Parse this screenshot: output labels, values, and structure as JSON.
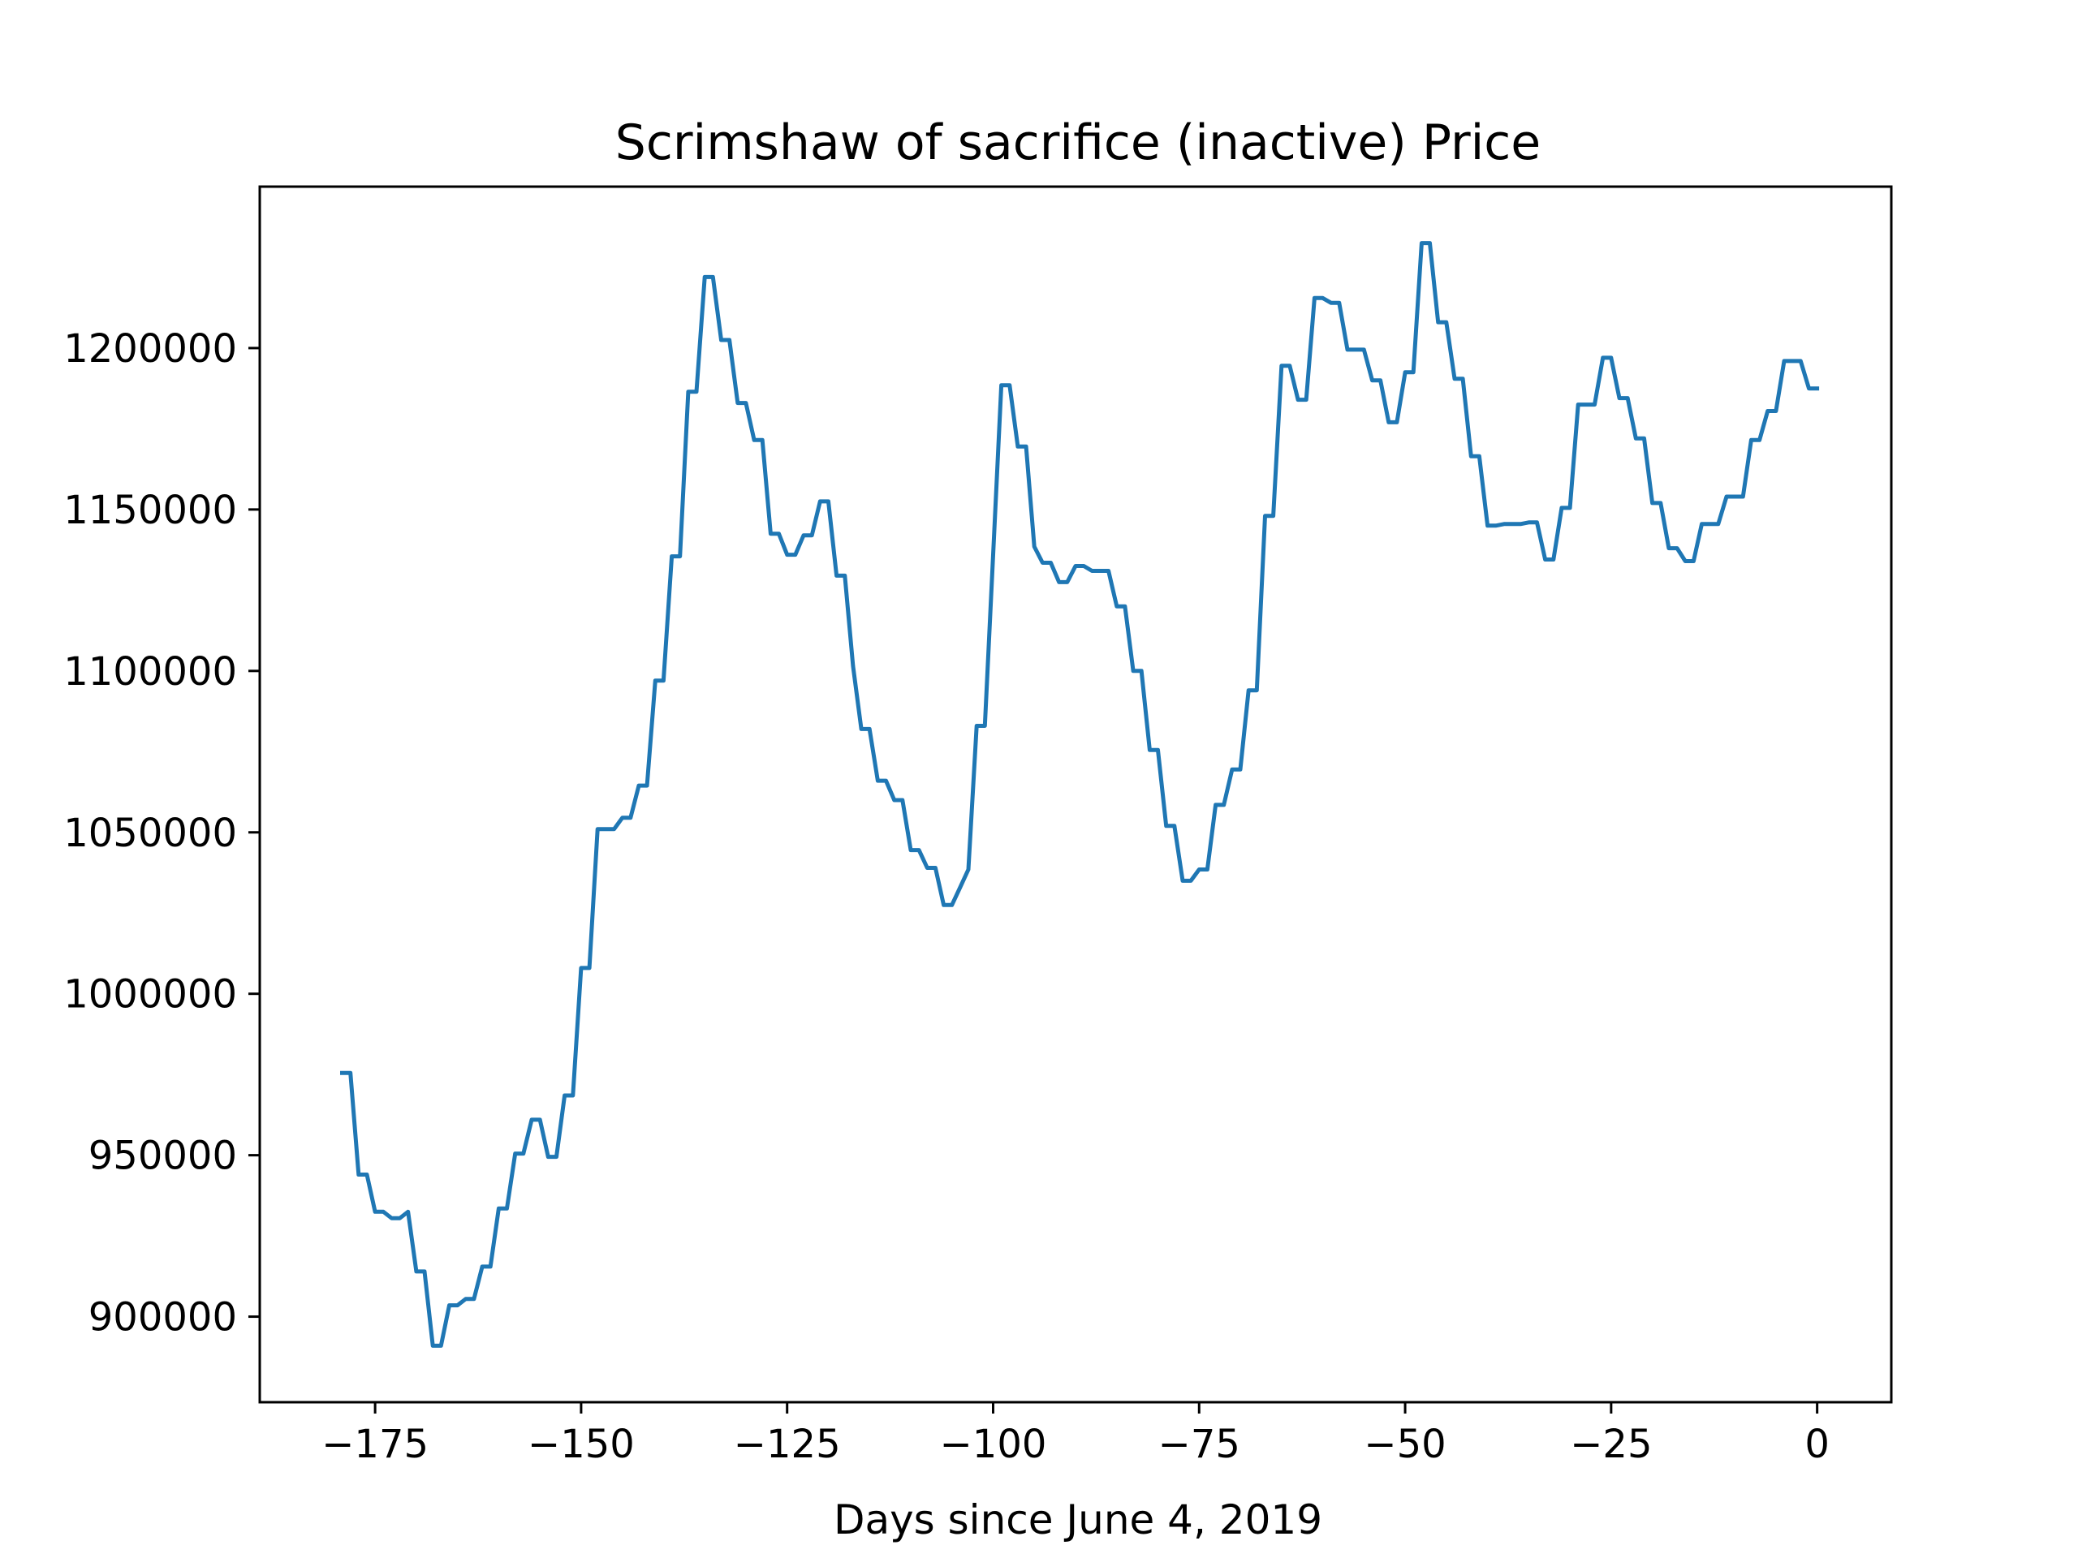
{
  "chart_data": {
    "type": "line",
    "title": "Scrimshaw of sacrifice (inactive) Price",
    "xlabel": "Days since June 4, 2019",
    "ylabel": "",
    "xlim": [
      -189,
      9
    ],
    "ylim": [
      873500,
      1250000
    ],
    "grid": false,
    "x_ticks": [
      {
        "value": -175,
        "label": "−175"
      },
      {
        "value": -150,
        "label": "−150"
      },
      {
        "value": -125,
        "label": "−125"
      },
      {
        "value": -100,
        "label": "−100"
      },
      {
        "value": -75,
        "label": "−75"
      },
      {
        "value": -50,
        "label": "−50"
      },
      {
        "value": -25,
        "label": "−25"
      },
      {
        "value": 0,
        "label": "0"
      }
    ],
    "y_ticks": [
      {
        "value": 900000,
        "label": "900000"
      },
      {
        "value": 950000,
        "label": "950000"
      },
      {
        "value": 1000000,
        "label": "1000000"
      },
      {
        "value": 1050000,
        "label": "1050000"
      },
      {
        "value": 1100000,
        "label": "1100000"
      },
      {
        "value": 1150000,
        "label": "1150000"
      },
      {
        "value": 1200000,
        "label": "1200000"
      }
    ],
    "series": [
      {
        "color": "#1f77b4",
        "points": [
          [
            -179,
            975500
          ],
          [
            -178,
            975500
          ],
          [
            -177,
            944000
          ],
          [
            -176,
            944000
          ],
          [
            -175,
            932500
          ],
          [
            -174,
            932500
          ],
          [
            -173,
            930500
          ],
          [
            -172,
            930500
          ],
          [
            -171,
            932500
          ],
          [
            -170,
            914000
          ],
          [
            -169,
            914000
          ],
          [
            -168,
            891000
          ],
          [
            -167,
            891000
          ],
          [
            -166,
            903500
          ],
          [
            -165,
            903500
          ],
          [
            -164,
            905500
          ],
          [
            -163,
            905500
          ],
          [
            -162,
            915500
          ],
          [
            -161,
            915500
          ],
          [
            -160,
            933500
          ],
          [
            -159,
            933500
          ],
          [
            -158,
            950500
          ],
          [
            -157,
            950500
          ],
          [
            -156,
            961000
          ],
          [
            -155,
            961000
          ],
          [
            -154,
            949500
          ],
          [
            -153,
            949500
          ],
          [
            -152,
            968500
          ],
          [
            -151,
            968500
          ],
          [
            -150,
            1008000
          ],
          [
            -149,
            1008000
          ],
          [
            -148,
            1051000
          ],
          [
            -147,
            1051000
          ],
          [
            -146,
            1051000
          ],
          [
            -145,
            1054500
          ],
          [
            -144,
            1054500
          ],
          [
            -143,
            1064500
          ],
          [
            -142,
            1064500
          ],
          [
            -141,
            1097000
          ],
          [
            -140,
            1097000
          ],
          [
            -139,
            1135500
          ],
          [
            -138,
            1135500
          ],
          [
            -137,
            1186500
          ],
          [
            -136,
            1186500
          ],
          [
            -135,
            1222000
          ],
          [
            -134,
            1222000
          ],
          [
            -133,
            1202500
          ],
          [
            -132,
            1202500
          ],
          [
            -131,
            1183000
          ],
          [
            -130,
            1183000
          ],
          [
            -129,
            1171500
          ],
          [
            -128,
            1171500
          ],
          [
            -127,
            1142500
          ],
          [
            -126,
            1142500
          ],
          [
            -125,
            1136000
          ],
          [
            -124,
            1136000
          ],
          [
            -123,
            1142000
          ],
          [
            -122,
            1142000
          ],
          [
            -121,
            1152500
          ],
          [
            -120,
            1152500
          ],
          [
            -119,
            1129500
          ],
          [
            -118,
            1129500
          ],
          [
            -117,
            1101500
          ],
          [
            -116,
            1082000
          ],
          [
            -115,
            1082000
          ],
          [
            -114,
            1066000
          ],
          [
            -113,
            1066000
          ],
          [
            -112,
            1060000
          ],
          [
            -111,
            1060000
          ],
          [
            -110,
            1044500
          ],
          [
            -109,
            1044500
          ],
          [
            -108,
            1039000
          ],
          [
            -107,
            1039000
          ],
          [
            -106,
            1027500
          ],
          [
            -105,
            1027500
          ],
          [
            -104,
            1033000
          ],
          [
            -103,
            1038500
          ],
          [
            -102,
            1083000
          ],
          [
            -101,
            1083000
          ],
          [
            -100,
            1136000
          ],
          [
            -99,
            1188500
          ],
          [
            -98,
            1188500
          ],
          [
            -97,
            1169500
          ],
          [
            -96,
            1169500
          ],
          [
            -95,
            1138500
          ],
          [
            -94,
            1133500
          ],
          [
            -93,
            1133500
          ],
          [
            -92,
            1127500
          ],
          [
            -91,
            1127500
          ],
          [
            -90,
            1132500
          ],
          [
            -89,
            1132500
          ],
          [
            -88,
            1131000
          ],
          [
            -87,
            1131000
          ],
          [
            -86,
            1131000
          ],
          [
            -85,
            1120000
          ],
          [
            -84,
            1120000
          ],
          [
            -83,
            1100000
          ],
          [
            -82,
            1100000
          ],
          [
            -81,
            1075500
          ],
          [
            -80,
            1075500
          ],
          [
            -79,
            1052000
          ],
          [
            -78,
            1052000
          ],
          [
            -77,
            1035000
          ],
          [
            -76,
            1035000
          ],
          [
            -75,
            1038500
          ],
          [
            -74,
            1038500
          ],
          [
            -73,
            1058500
          ],
          [
            -72,
            1058500
          ],
          [
            -71,
            1069500
          ],
          [
            -70,
            1069500
          ],
          [
            -69,
            1094000
          ],
          [
            -68,
            1094000
          ],
          [
            -67,
            1148000
          ],
          [
            -66,
            1148000
          ],
          [
            -65,
            1194500
          ],
          [
            -64,
            1194500
          ],
          [
            -63,
            1184000
          ],
          [
            -62,
            1184000
          ],
          [
            -61,
            1215500
          ],
          [
            -60,
            1215500
          ],
          [
            -59,
            1214000
          ],
          [
            -58,
            1214000
          ],
          [
            -57,
            1199500
          ],
          [
            -56,
            1199500
          ],
          [
            -55,
            1199500
          ],
          [
            -54,
            1190000
          ],
          [
            -53,
            1190000
          ],
          [
            -52,
            1177000
          ],
          [
            -51,
            1177000
          ],
          [
            -50,
            1192500
          ],
          [
            -49,
            1192500
          ],
          [
            -48,
            1232500
          ],
          [
            -47,
            1232500
          ],
          [
            -46,
            1208000
          ],
          [
            -45,
            1208000
          ],
          [
            -44,
            1190500
          ],
          [
            -43,
            1190500
          ],
          [
            -42,
            1166500
          ],
          [
            -41,
            1166500
          ],
          [
            -40,
            1145000
          ],
          [
            -39,
            1145000
          ],
          [
            -38,
            1145500
          ],
          [
            -37,
            1145500
          ],
          [
            -36,
            1145500
          ],
          [
            -35,
            1146000
          ],
          [
            -34,
            1146000
          ],
          [
            -33,
            1134500
          ],
          [
            -32,
            1134500
          ],
          [
            -31,
            1150500
          ],
          [
            -30,
            1150500
          ],
          [
            -29,
            1182500
          ],
          [
            -28,
            1182500
          ],
          [
            -27,
            1182500
          ],
          [
            -26,
            1197000
          ],
          [
            -25,
            1197000
          ],
          [
            -24,
            1184500
          ],
          [
            -23,
            1184500
          ],
          [
            -22,
            1172000
          ],
          [
            -21,
            1172000
          ],
          [
            -20,
            1152000
          ],
          [
            -19,
            1152000
          ],
          [
            -18,
            1138000
          ],
          [
            -17,
            1138000
          ],
          [
            -16,
            1134000
          ],
          [
            -15,
            1134000
          ],
          [
            -14,
            1145500
          ],
          [
            -13,
            1145500
          ],
          [
            -12,
            1145500
          ],
          [
            -11,
            1154000
          ],
          [
            -10,
            1154000
          ],
          [
            -9,
            1154000
          ],
          [
            -8,
            1171500
          ],
          [
            -7,
            1171500
          ],
          [
            -6,
            1180500
          ],
          [
            -5,
            1180500
          ],
          [
            -4,
            1196000
          ],
          [
            -3,
            1196000
          ],
          [
            -2,
            1196000
          ],
          [
            -1,
            1187500
          ],
          [
            0,
            1187500
          ]
        ]
      }
    ]
  }
}
